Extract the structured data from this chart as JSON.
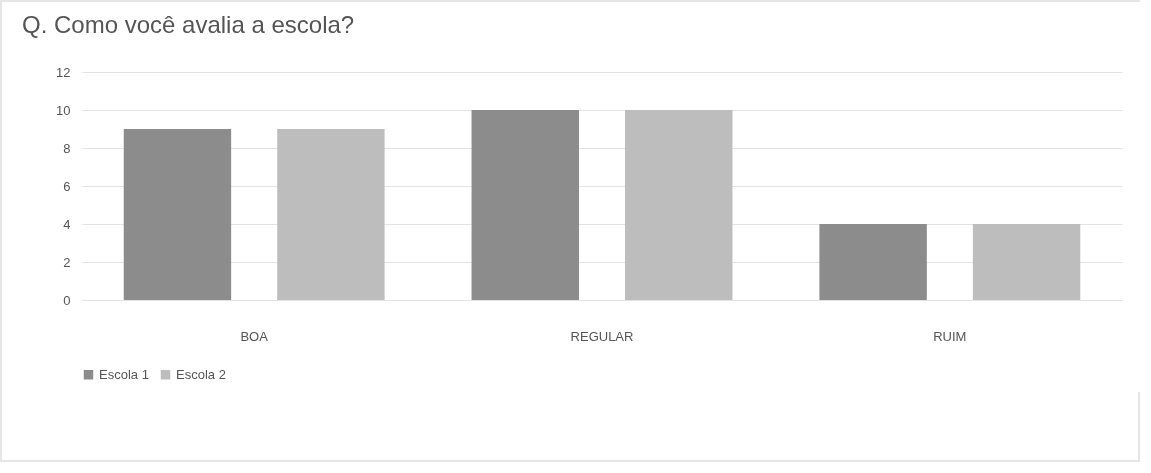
{
  "chart_data": {
    "type": "bar",
    "title": "Q. Como você avalia a escola?",
    "categories": [
      "BOA",
      "REGULAR",
      "RUIM"
    ],
    "series": [
      {
        "name": "Escola 1",
        "color": "#8c8c8c",
        "values": [
          9,
          10,
          4
        ]
      },
      {
        "name": "Escola 2",
        "color": "#bdbdbd",
        "values": [
          9,
          10,
          4
        ]
      }
    ],
    "ylim": [
      0,
      12
    ],
    "yticks": [
      0,
      2,
      4,
      6,
      8,
      10,
      12
    ],
    "grid": "y",
    "legend": "bottom"
  }
}
